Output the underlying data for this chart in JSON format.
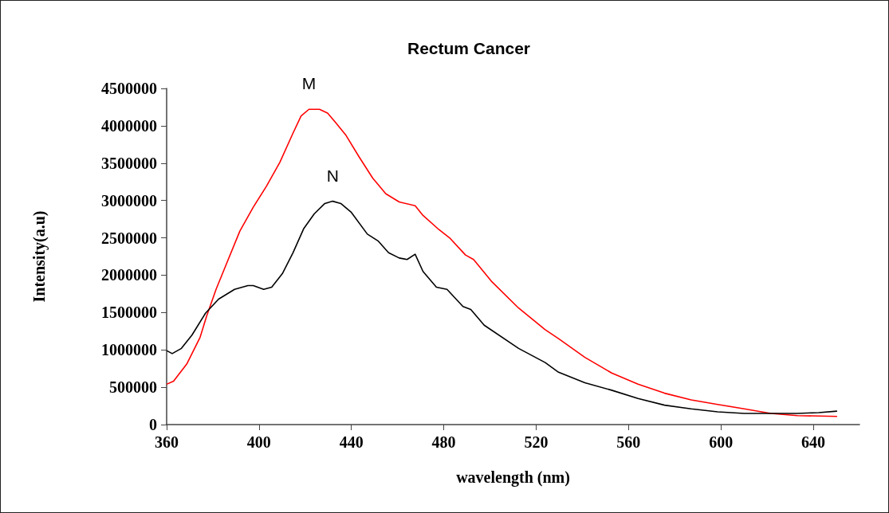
{
  "chart_data": {
    "type": "line",
    "title": "Rectum Cancer",
    "xlabel": "wavelength (nm)",
    "ylabel": "Intensity(a.u)",
    "xlim": [
      360,
      660
    ],
    "xticks": [
      360,
      400,
      440,
      480,
      520,
      560,
      600,
      640
    ],
    "ylim": [
      0,
      4500000
    ],
    "yticks": [
      0,
      500000,
      1000000,
      1500000,
      2000000,
      2500000,
      3000000,
      3500000,
      4000000,
      4500000
    ],
    "grid": false,
    "legend": false,
    "marker": "none",
    "line_style": "solid",
    "series": [
      {
        "name": "M",
        "color": "#ff0000",
        "x": [
          360,
          363,
          368.7,
          374.5,
          377.3,
          381.4,
          386,
          391.7,
          397.5,
          403.2,
          409,
          414.7,
          418.2,
          421.6,
          426.2,
          429.7,
          433,
          437.7,
          443.4,
          449.2,
          454.9,
          460.7,
          467.6,
          471,
          477.9,
          482.5,
          489.4,
          492.9,
          500.9,
          512.4,
          523.9,
          529.7,
          541.1,
          552.7,
          564.1,
          575.6,
          587.1,
          598.6,
          610.1,
          621.6,
          633.1,
          650.3
        ],
        "values": [
          540000,
          580000,
          810000,
          1170000,
          1450000,
          1810000,
          2160000,
          2590000,
          2910000,
          3190000,
          3510000,
          3900000,
          4130000,
          4220000,
          4220000,
          4170000,
          4050000,
          3870000,
          3580000,
          3300000,
          3090000,
          2980000,
          2930000,
          2800000,
          2610000,
          2500000,
          2270000,
          2210000,
          1910000,
          1560000,
          1270000,
          1150000,
          900000,
          690000,
          540000,
          420000,
          330000,
          270000,
          210000,
          150000,
          120000,
          110000
        ]
      },
      {
        "name": "N",
        "color": "#000000",
        "x": [
          360,
          362.4,
          366.4,
          371,
          376.8,
          382.5,
          389.4,
          395.2,
          397.5,
          402,
          405.5,
          410.1,
          414.7,
          419.3,
          423.9,
          428.5,
          431.9,
          435.4,
          440,
          446.9,
          451.5,
          456.1,
          460.7,
          464.1,
          467.6,
          471,
          476.8,
          481.4,
          488.3,
          491.7,
          497.5,
          512.4,
          523.9,
          529.7,
          541.1,
          552.7,
          564.1,
          575.6,
          587.1,
          598.6,
          610.1,
          621.6,
          633.1,
          642.3,
          650.3
        ],
        "values": [
          990000,
          950000,
          1020000,
          1200000,
          1490000,
          1680000,
          1810000,
          1860000,
          1860000,
          1810000,
          1840000,
          2020000,
          2300000,
          2620000,
          2820000,
          2960000,
          2990000,
          2960000,
          2840000,
          2550000,
          2460000,
          2300000,
          2230000,
          2210000,
          2280000,
          2050000,
          1840000,
          1810000,
          1580000,
          1540000,
          1330000,
          1020000,
          830000,
          700000,
          560000,
          460000,
          350000,
          260000,
          210000,
          170000,
          150000,
          150000,
          150000,
          160000,
          180000
        ]
      }
    ]
  }
}
